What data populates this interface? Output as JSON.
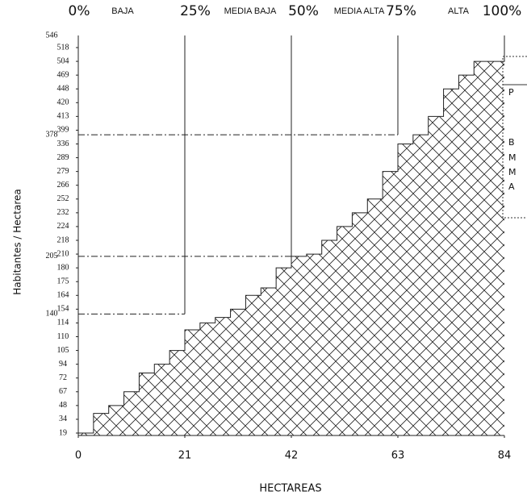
{
  "chart_data": {
    "type": "step_area",
    "top_labels": [
      "0%",
      "BAJA",
      "25%",
      "MEDIA BAJA",
      "50%",
      "MEDIA ALTA",
      "75%",
      "ALTA",
      "100%"
    ],
    "x_label": "HECTAREAS",
    "y_label": "Habitantes / Hectarea",
    "x": [
      0,
      3,
      6,
      9,
      12,
      15,
      18,
      21,
      24,
      27,
      30,
      33,
      36,
      39,
      42,
      45,
      48,
      51,
      54,
      57,
      60,
      63,
      66,
      69,
      72,
      75,
      78,
      81,
      84
    ],
    "values": [
      19,
      40,
      48,
      67,
      80,
      94,
      105,
      112,
      114,
      130,
      154,
      164,
      170,
      180,
      205,
      210,
      218,
      224,
      232,
      252,
      279,
      336,
      378,
      413,
      448,
      469,
      504,
      504,
      546
    ],
    "xlim": [
      0,
      84
    ],
    "xticks": [
      0,
      21,
      42,
      63,
      84
    ],
    "ylim": [
      19,
      546
    ],
    "yticks": [
      19,
      34,
      48,
      67,
      72,
      94,
      105,
      110,
      114,
      154,
      164,
      175,
      180,
      210,
      218,
      224,
      232,
      252,
      266,
      279,
      289,
      336,
      399,
      413,
      420,
      448,
      469,
      504,
      518
    ],
    "ref_lines": [
      {
        "x": 21,
        "y": 140
      },
      {
        "x": 42,
        "y": 205
      },
      {
        "x": 63,
        "y": 378
      }
    ],
    "legend_fragment": [
      "P",
      "B",
      "M",
      "M",
      "A"
    ],
    "hatch": "crosshatch",
    "color": "#222222"
  }
}
